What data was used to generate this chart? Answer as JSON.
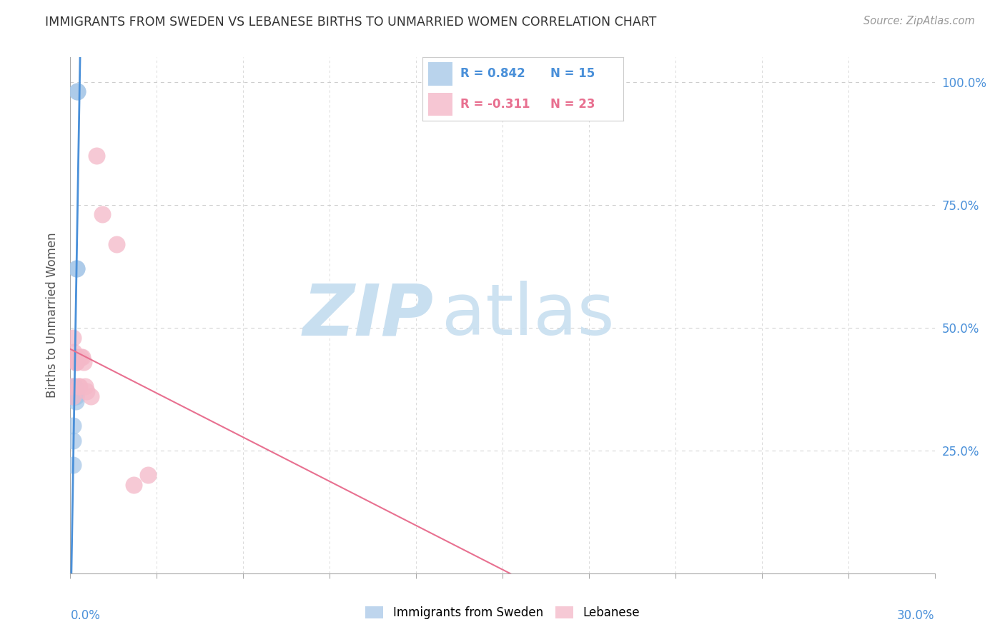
{
  "title": "IMMIGRANTS FROM SWEDEN VS LEBANESE BIRTHS TO UNMARRIED WOMEN CORRELATION CHART",
  "source": "Source: ZipAtlas.com",
  "ylabel": "Births to Unmarried Women",
  "R_sweden": 0.842,
  "N_sweden": 15,
  "R_lebanese": -0.311,
  "N_lebanese": 23,
  "color_sweden": "#a8c8e8",
  "color_lebanese": "#f4b8c8",
  "color_sweden_line": "#4a90d9",
  "color_lebanese_line": "#e87090",
  "sweden_x": [
    0.0008,
    0.001,
    0.001,
    0.0012,
    0.0012,
    0.0015,
    0.0015,
    0.0018,
    0.0018,
    0.002,
    0.002,
    0.0022,
    0.0022,
    0.0025,
    0.0025
  ],
  "sweden_y": [
    0.22,
    0.27,
    0.3,
    0.36,
    0.36,
    0.38,
    0.38,
    0.35,
    0.36,
    0.36,
    0.37,
    0.62,
    0.62,
    0.98,
    0.98
  ],
  "lebanese_x": [
    0.0005,
    0.0008,
    0.001,
    0.0012,
    0.0015,
    0.0015,
    0.0018,
    0.002,
    0.0022,
    0.0025,
    0.0028,
    0.003,
    0.0035,
    0.004,
    0.0045,
    0.005,
    0.0055,
    0.007,
    0.009,
    0.011,
    0.016,
    0.022,
    0.027
  ],
  "lebanese_y": [
    0.38,
    0.36,
    0.48,
    0.45,
    0.44,
    0.44,
    0.43,
    0.43,
    0.43,
    0.44,
    0.38,
    0.38,
    0.44,
    0.44,
    0.43,
    0.38,
    0.37,
    0.36,
    0.85,
    0.73,
    0.67,
    0.18,
    0.2
  ],
  "xlim": [
    0.0,
    0.3
  ],
  "ylim": [
    0.0,
    1.05
  ],
  "yticks": [
    0.25,
    0.5,
    0.75,
    1.0
  ],
  "ytick_labels": [
    "25.0%",
    "50.0%",
    "75.0%",
    "100.0%"
  ],
  "background_color": "#ffffff",
  "grid_color": "#cccccc",
  "watermark_zip_color": "#c8dff0",
  "watermark_atlas_color": "#c8dff0"
}
